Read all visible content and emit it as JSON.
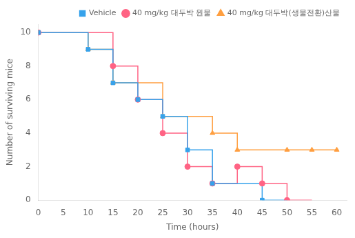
{
  "chart_data": {
    "type": "line",
    "xlabel": "Time (hours)",
    "ylabel": "Number of surviving mice",
    "xlim": [
      0,
      62
    ],
    "ylim": [
      0,
      10.5
    ],
    "xticks": [
      0,
      5,
      10,
      15,
      20,
      25,
      30,
      35,
      40,
      45,
      50,
      55,
      60
    ],
    "yticks": [
      0,
      2,
      4,
      6,
      8,
      10
    ],
    "grid": false,
    "legend": "upper right",
    "series": [
      {
        "name": "Vehicle",
        "marker": "square",
        "x": [
          0,
          10,
          10,
          15,
          15,
          20,
          20,
          25,
          25,
          30,
          30,
          35,
          35,
          45,
          45,
          50
        ],
        "values": [
          10,
          10,
          9,
          9,
          7,
          7,
          6,
          6,
          5,
          5,
          3,
          3,
          1,
          1,
          0,
          0
        ],
        "marker_x": [
          0,
          10,
          15,
          20,
          25,
          30,
          35,
          45
        ],
        "marker_values": [
          10,
          9,
          7,
          6,
          5,
          3,
          1,
          0
        ]
      },
      {
        "name": "40 mg/kg 대두박 원물",
        "marker": "circle",
        "x": [
          0,
          15,
          15,
          20,
          20,
          25,
          25,
          30,
          30,
          35,
          35,
          40,
          40,
          45,
          45,
          50,
          50,
          55
        ],
        "values": [
          10,
          10,
          8,
          8,
          6,
          6,
          4,
          4,
          2,
          2,
          1,
          1,
          2,
          2,
          1,
          1,
          0,
          0
        ],
        "marker_x": [
          0,
          15,
          20,
          25,
          30,
          35,
          40,
          45,
          50
        ],
        "marker_values": [
          10,
          8,
          6,
          4,
          2,
          1,
          2,
          1,
          0
        ]
      },
      {
        "name": "40 mg/kg 대두박(생물전환)산물",
        "marker": "triangle",
        "x": [
          0,
          10,
          10,
          15,
          15,
          25,
          25,
          35,
          35,
          40,
          40,
          50,
          50,
          55,
          60
        ],
        "values": [
          10,
          10,
          9,
          9,
          7,
          7,
          5,
          5,
          4,
          4,
          3,
          3,
          3,
          3,
          3
        ],
        "marker_x": [
          0,
          10,
          15,
          25,
          35,
          40,
          50,
          55,
          60
        ],
        "marker_values": [
          10,
          9,
          7,
          5,
          4,
          3,
          3,
          3,
          3
        ]
      }
    ]
  }
}
